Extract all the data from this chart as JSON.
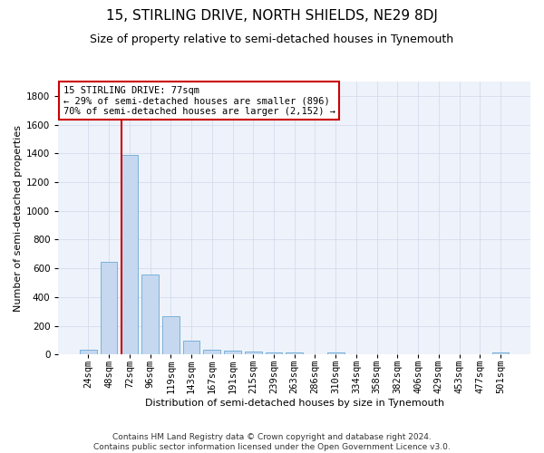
{
  "title": "15, STIRLING DRIVE, NORTH SHIELDS, NE29 8DJ",
  "subtitle": "Size of property relative to semi-detached houses in Tynemouth",
  "xlabel": "Distribution of semi-detached houses by size in Tynemouth",
  "ylabel": "Number of semi-detached properties",
  "bar_color": "#c5d8f0",
  "bar_edge_color": "#6aaad4",
  "bin_labels": [
    "24sqm",
    "48sqm",
    "72sqm",
    "96sqm",
    "119sqm",
    "143sqm",
    "167sqm",
    "191sqm",
    "215sqm",
    "239sqm",
    "263sqm",
    "286sqm",
    "310sqm",
    "334sqm",
    "358sqm",
    "382sqm",
    "406sqm",
    "429sqm",
    "453sqm",
    "477sqm",
    "501sqm"
  ],
  "bar_values": [
    35,
    645,
    1390,
    560,
    265,
    100,
    37,
    28,
    22,
    18,
    12,
    0,
    18,
    0,
    0,
    0,
    0,
    0,
    0,
    0,
    18
  ],
  "vline_bin_index": 2,
  "ylim": [
    0,
    1900
  ],
  "yticks": [
    0,
    200,
    400,
    600,
    800,
    1000,
    1200,
    1400,
    1600,
    1800
  ],
  "annotation_line1": "15 STIRLING DRIVE: 77sqm",
  "annotation_line2": "← 29% of semi-detached houses are smaller (896)",
  "annotation_line3": "70% of semi-detached houses are larger (2,152) →",
  "annotation_box_color": "#ffffff",
  "annotation_box_edge": "#cc0000",
  "vline_color": "#cc0000",
  "footer_line1": "Contains HM Land Registry data © Crown copyright and database right 2024.",
  "footer_line2": "Contains public sector information licensed under the Open Government Licence v3.0.",
  "grid_color": "#d0d8e8",
  "background_color": "#eef2fa",
  "title_fontsize": 11,
  "subtitle_fontsize": 9,
  "ylabel_fontsize": 8,
  "xlabel_fontsize": 8,
  "tick_fontsize": 7.5,
  "annotation_fontsize": 7.5,
  "footer_fontsize": 6.5
}
